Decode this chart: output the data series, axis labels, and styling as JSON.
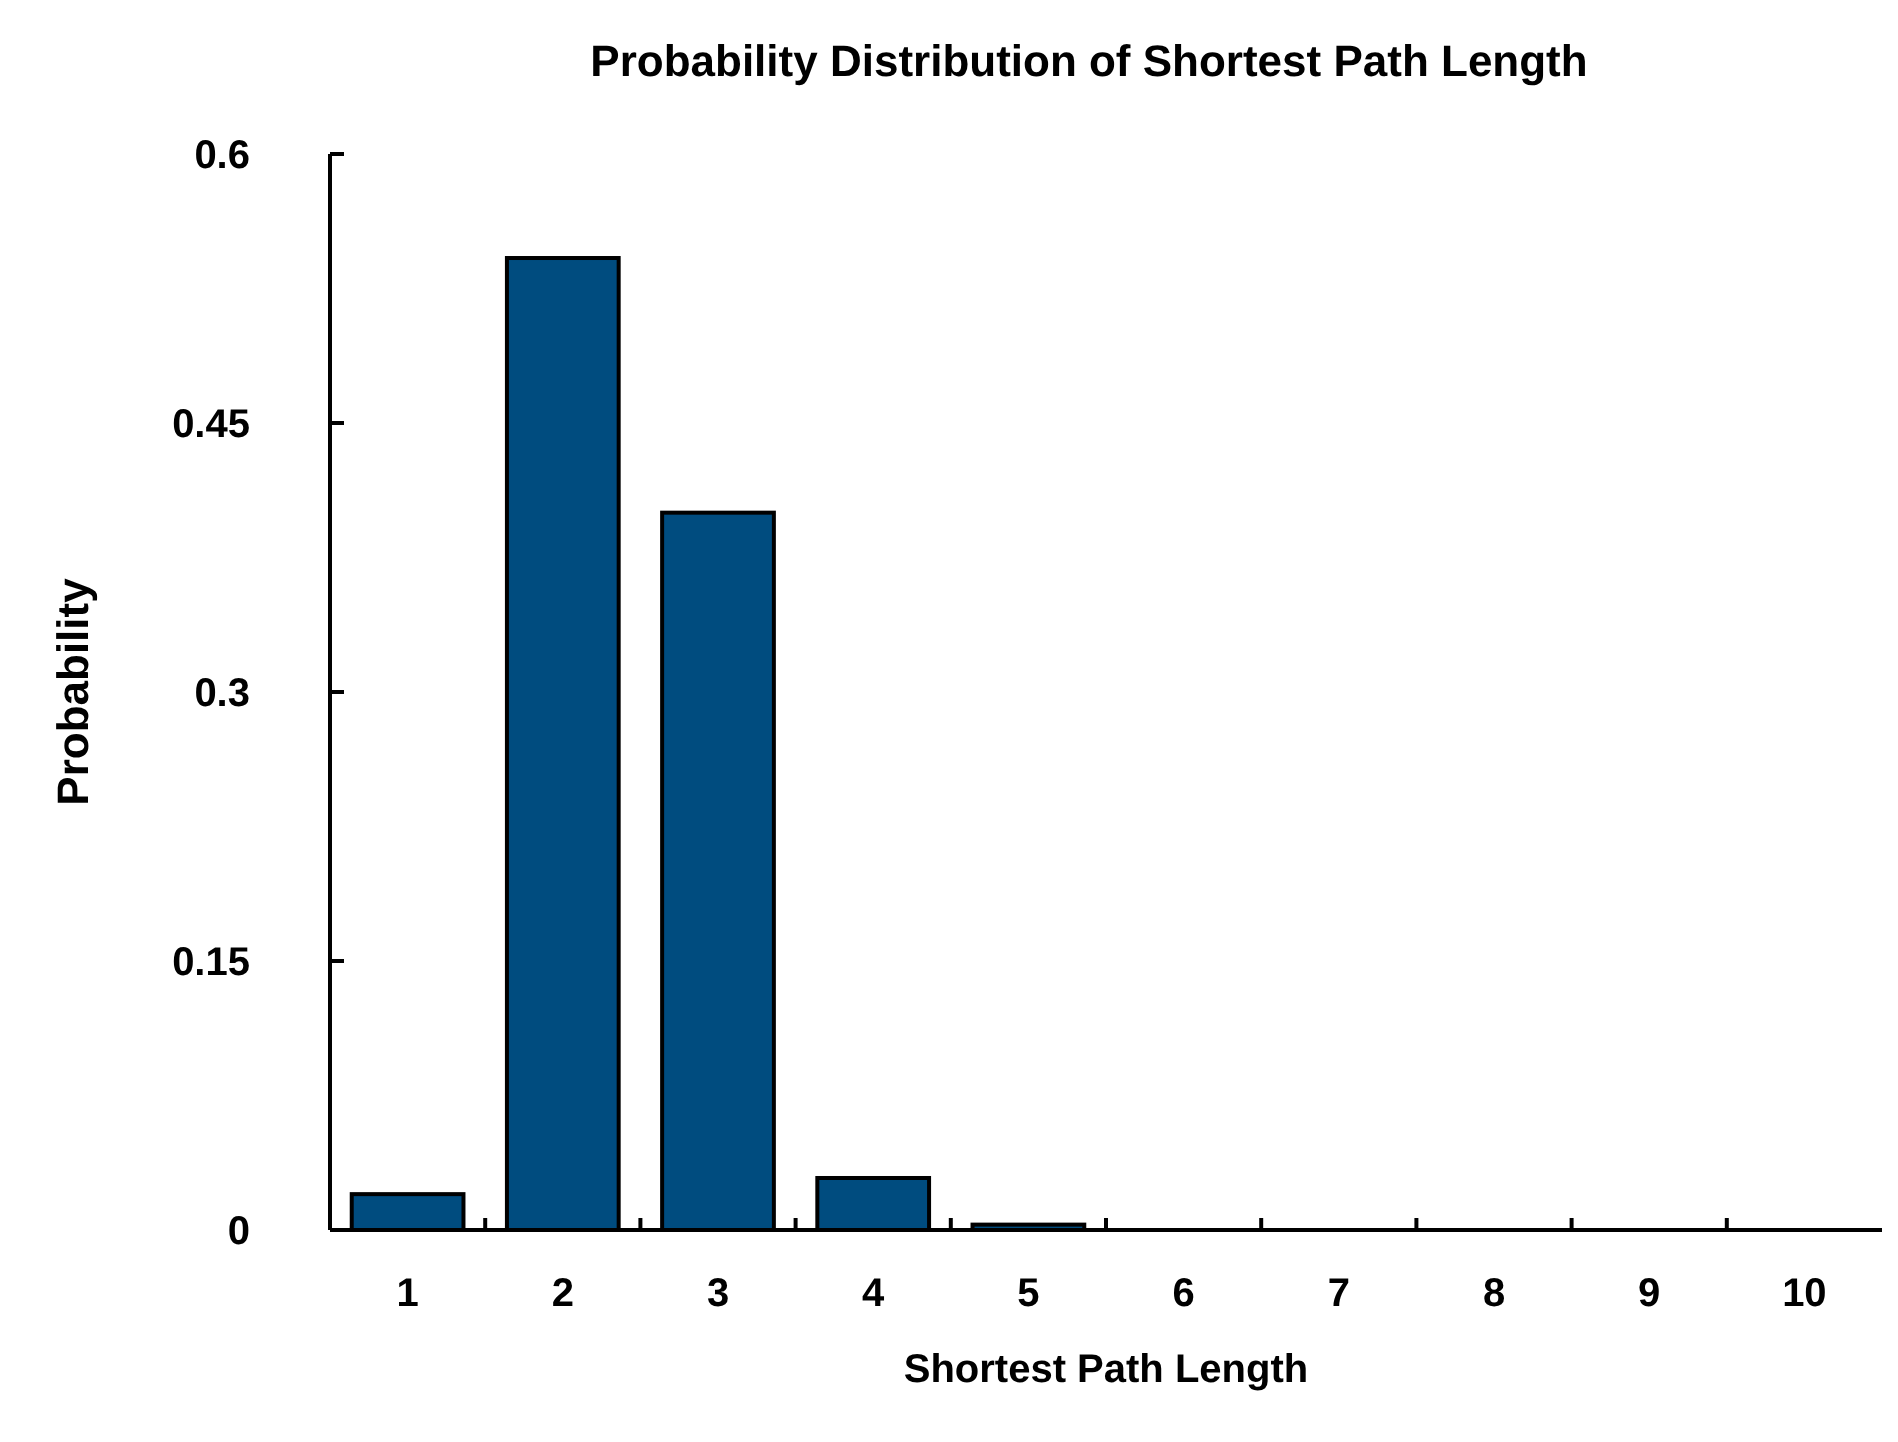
{
  "chart_data": {
    "type": "bar",
    "title": "Probability Distribution of Shortest Path Length",
    "xlabel": "Shortest Path Length",
    "ylabel": "Probability",
    "categories": [
      "1",
      "2",
      "3",
      "4",
      "5",
      "6",
      "7",
      "8",
      "9",
      "10"
    ],
    "values": [
      0.02,
      0.542,
      0.4,
      0.029,
      0.003,
      0,
      0,
      0,
      0,
      0
    ],
    "color": "#004c7f",
    "ylim": [
      0,
      0.6
    ],
    "yticks": [
      0,
      0.15,
      0.3,
      0.45,
      0.6
    ],
    "grid": false
  }
}
